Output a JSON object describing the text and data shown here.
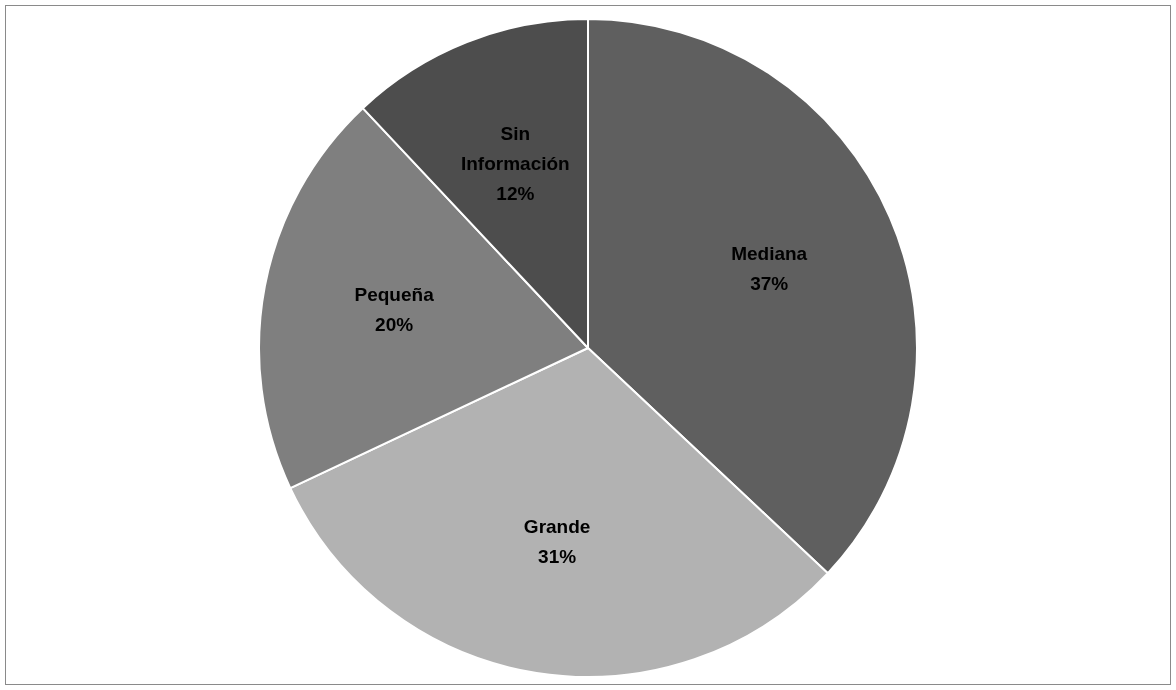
{
  "chart_data": {
    "type": "pie",
    "categories": [
      "Mediana",
      "Grande",
      "Pequeña",
      "Sin Información"
    ],
    "values": [
      37,
      31,
      20,
      12
    ],
    "value_labels": [
      "37%",
      "31%",
      "20%",
      "12%"
    ],
    "colors": [
      "#5f5f5f",
      "#b2b2b2",
      "#7f7f7f",
      "#4d4d4d"
    ],
    "legend": false
  }
}
